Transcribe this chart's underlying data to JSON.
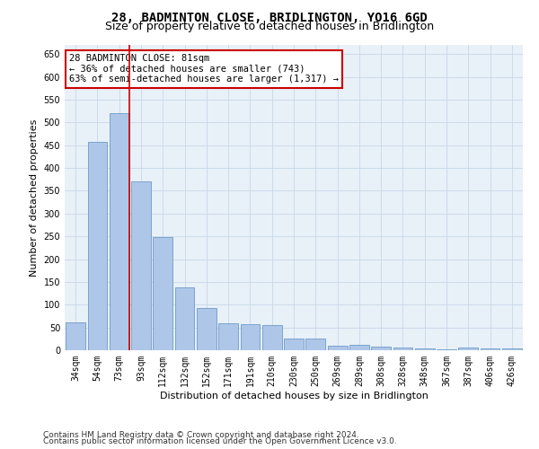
{
  "title": "28, BADMINTON CLOSE, BRIDLINGTON, YO16 6GD",
  "subtitle": "Size of property relative to detached houses in Bridlington",
  "xlabel": "Distribution of detached houses by size in Bridlington",
  "ylabel": "Number of detached properties",
  "categories": [
    "34sqm",
    "54sqm",
    "73sqm",
    "93sqm",
    "112sqm",
    "132sqm",
    "152sqm",
    "171sqm",
    "191sqm",
    "210sqm",
    "230sqm",
    "250sqm",
    "269sqm",
    "289sqm",
    "308sqm",
    "328sqm",
    "348sqm",
    "367sqm",
    "387sqm",
    "406sqm",
    "426sqm"
  ],
  "values": [
    62,
    458,
    520,
    370,
    248,
    138,
    93,
    60,
    57,
    55,
    26,
    26,
    10,
    12,
    7,
    6,
    4,
    2,
    6,
    3,
    4
  ],
  "bar_color": "#aec6e8",
  "bar_edge_color": "#5a8fc0",
  "vline_color": "#cc0000",
  "annotation_text": "28 BADMINTON CLOSE: 81sqm\n← 36% of detached houses are smaller (743)\n63% of semi-detached houses are larger (1,317) →",
  "annotation_box_color": "#ffffff",
  "annotation_box_edge": "#cc0000",
  "ylim": [
    0,
    670
  ],
  "yticks": [
    0,
    50,
    100,
    150,
    200,
    250,
    300,
    350,
    400,
    450,
    500,
    550,
    600,
    650
  ],
  "footer1": "Contains HM Land Registry data © Crown copyright and database right 2024.",
  "footer2": "Contains public sector information licensed under the Open Government Licence v3.0.",
  "bg_color": "#ffffff",
  "plot_bg_color": "#e8f0f8",
  "grid_color": "#c8d8e8",
  "title_fontsize": 10,
  "subtitle_fontsize": 9,
  "axis_label_fontsize": 8,
  "tick_fontsize": 7,
  "annotation_fontsize": 7.5,
  "footer_fontsize": 6.5
}
